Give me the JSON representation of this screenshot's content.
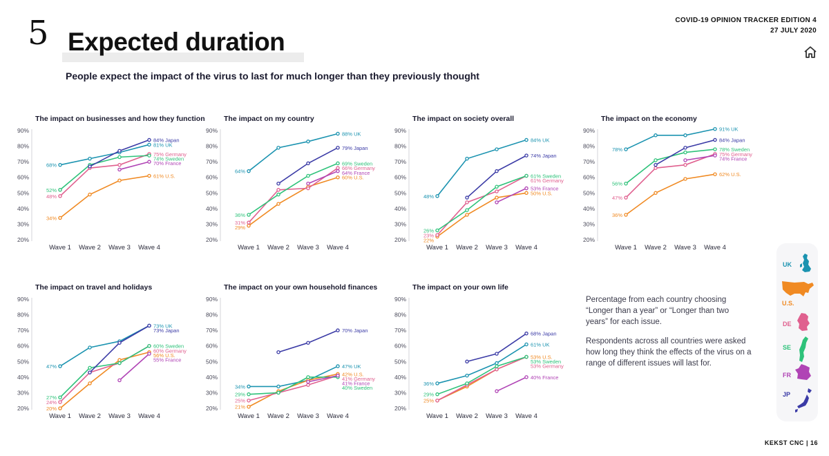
{
  "header": {
    "edition": "COVID-19 OPINION TRACKER EDITION 4",
    "date": "27 JULY 2020",
    "section_number": "5",
    "title": "Expected duration",
    "subtitle": "People expect the impact of the virus to last for much longer than they previously thought",
    "home_icon": "home-icon"
  },
  "colors": {
    "UK": "#1b93b0",
    "US": "#f08a23",
    "Germany": "#e0608f",
    "Sweden": "#2ec27a",
    "France": "#b044b5",
    "Japan": "#3b3ba6"
  },
  "chart_data": [
    {
      "type": "line",
      "title": "The impact on businesses and how they function",
      "categories": [
        "Wave 1",
        "Wave 2",
        "Wave 3",
        "Wave 4"
      ],
      "yticks": [
        "90%",
        "80%",
        "70%",
        "60%",
        "50%",
        "40%",
        "30%",
        "20%"
      ],
      "ylim": [
        20,
        90
      ],
      "first_labels": [
        "68%",
        "52%",
        "48%",
        "34%"
      ],
      "last_labels": [
        "84% Japan",
        "81% UK",
        "75% Germany",
        "74% Sweden",
        "70% France",
        "61% U.S."
      ],
      "series": [
        {
          "name": "UK",
          "values": [
            68,
            72,
            76,
            81
          ]
        },
        {
          "name": "US",
          "values": [
            34,
            49,
            58,
            61
          ]
        },
        {
          "name": "Germany",
          "values": [
            48,
            66,
            68,
            75
          ]
        },
        {
          "name": "Sweden",
          "values": [
            52,
            68,
            73,
            74
          ]
        },
        {
          "name": "France",
          "values": [
            null,
            null,
            65,
            70
          ]
        },
        {
          "name": "Japan",
          "values": [
            null,
            67,
            77,
            84
          ]
        }
      ]
    },
    {
      "type": "line",
      "title": "The impact on my country",
      "categories": [
        "Wave 1",
        "Wave 2",
        "Wave 3",
        "Wave 4"
      ],
      "yticks": [
        "90%",
        "80%",
        "70%",
        "60%",
        "50%",
        "40%",
        "30%",
        "20%"
      ],
      "ylim": [
        20,
        90
      ],
      "first_labels": [
        "64%",
        "36%",
        "31%",
        "29%"
      ],
      "last_labels": [
        "88% UK",
        "79% Japan",
        "69% Sweden",
        "66% Germany",
        "64% France",
        "60% U.S."
      ],
      "series": [
        {
          "name": "UK",
          "values": [
            64,
            79,
            83,
            88
          ]
        },
        {
          "name": "US",
          "values": [
            29,
            43,
            54,
            60
          ]
        },
        {
          "name": "Germany",
          "values": [
            31,
            52,
            53,
            66
          ]
        },
        {
          "name": "Sweden",
          "values": [
            36,
            49,
            61,
            69
          ]
        },
        {
          "name": "France",
          "values": [
            null,
            null,
            56,
            64
          ]
        },
        {
          "name": "Japan",
          "values": [
            null,
            56,
            69,
            79
          ]
        }
      ]
    },
    {
      "type": "line",
      "title": "The impact on society overall",
      "categories": [
        "Wave 1",
        "Wave 2",
        "Wave 3",
        "Wave 4"
      ],
      "yticks": [
        "90%",
        "80%",
        "70%",
        "60%",
        "50%",
        "40%",
        "30%",
        "20%"
      ],
      "ylim": [
        20,
        90
      ],
      "first_labels": [
        "48%",
        "26%",
        "23%",
        "22%"
      ],
      "last_labels": [
        "84% UK",
        "74% Japan",
        "61% Sweden",
        "61% Germany",
        "53% France",
        "50% U.S."
      ],
      "series": [
        {
          "name": "UK",
          "values": [
            48,
            72,
            78,
            84
          ]
        },
        {
          "name": "US",
          "values": [
            22,
            36,
            47,
            50
          ]
        },
        {
          "name": "Germany",
          "values": [
            23,
            44,
            51,
            61
          ]
        },
        {
          "name": "Sweden",
          "values": [
            26,
            39,
            54,
            61
          ]
        },
        {
          "name": "France",
          "values": [
            null,
            null,
            44,
            53
          ]
        },
        {
          "name": "Japan",
          "values": [
            null,
            47,
            64,
            74
          ]
        }
      ]
    },
    {
      "type": "line",
      "title": "The impact on the economy",
      "categories": [
        "Wave 1",
        "Wave 2",
        "Wave 3",
        "Wave 4"
      ],
      "yticks": [
        "90%",
        "80%",
        "70%",
        "60%",
        "50%",
        "40%",
        "30%",
        "20%"
      ],
      "ylim": [
        20,
        90
      ],
      "first_labels": [
        "78%",
        "56%",
        "47%",
        "36%"
      ],
      "last_labels": [
        "91% UK",
        "84% Japan",
        "78% Sweden",
        "75% Germany",
        "74% France",
        "62% U.S."
      ],
      "series": [
        {
          "name": "UK",
          "values": [
            78,
            87,
            87,
            91
          ]
        },
        {
          "name": "US",
          "values": [
            36,
            50,
            59,
            62
          ]
        },
        {
          "name": "Germany",
          "values": [
            47,
            66,
            68,
            75
          ]
        },
        {
          "name": "Sweden",
          "values": [
            56,
            71,
            76,
            78
          ]
        },
        {
          "name": "France",
          "values": [
            null,
            null,
            71,
            74
          ]
        },
        {
          "name": "Japan",
          "values": [
            null,
            68,
            79,
            84
          ]
        }
      ]
    },
    {
      "type": "line",
      "title": "The impact on travel and holidays",
      "categories": [
        "Wave 1",
        "Wave 2",
        "Wave 3",
        "Wave 4"
      ],
      "yticks": [
        "90%",
        "80%",
        "70%",
        "60%",
        "50%",
        "40%",
        "30%",
        "20%"
      ],
      "ylim": [
        20,
        90
      ],
      "first_labels": [
        "47%",
        "27%",
        "24%",
        "20%"
      ],
      "last_labels": [
        "73% UK",
        "73% Japan",
        "60% Sweden",
        "60% Germany",
        "56% U.S.",
        "55% France"
      ],
      "series": [
        {
          "name": "UK",
          "values": [
            47,
            59,
            63,
            73
          ]
        },
        {
          "name": "US",
          "values": [
            20,
            36,
            51,
            56
          ]
        },
        {
          "name": "Germany",
          "values": [
            24,
            43,
            49,
            60
          ]
        },
        {
          "name": "Sweden",
          "values": [
            27,
            46,
            49,
            60
          ]
        },
        {
          "name": "France",
          "values": [
            null,
            null,
            38,
            55
          ]
        },
        {
          "name": "Japan",
          "values": [
            null,
            43,
            62,
            73
          ]
        }
      ]
    },
    {
      "type": "line",
      "title": "The impact on your own household finances",
      "categories": [
        "Wave 1",
        "Wave 2",
        "Wave 3",
        "Wave 4"
      ],
      "yticks": [
        "90%",
        "80%",
        "70%",
        "60%",
        "50%",
        "40%",
        "30%",
        "20%"
      ],
      "ylim": [
        20,
        90
      ],
      "first_labels": [
        "34%",
        "29%",
        "25%",
        "21%"
      ],
      "last_labels": [
        "70% Japan",
        "47% UK",
        "42% U.S.",
        "41% Germany",
        "41% France",
        "40% Sweden"
      ],
      "series": [
        {
          "name": "UK",
          "values": [
            34,
            34,
            38,
            47
          ]
        },
        {
          "name": "US",
          "values": [
            21,
            31,
            38,
            42
          ]
        },
        {
          "name": "Germany",
          "values": [
            25,
            30,
            35,
            41
          ]
        },
        {
          "name": "Sweden",
          "values": [
            29,
            30,
            40,
            40
          ]
        },
        {
          "name": "France",
          "values": [
            null,
            null,
            37,
            41
          ]
        },
        {
          "name": "Japan",
          "values": [
            null,
            56,
            62,
            70
          ]
        }
      ]
    },
    {
      "type": "line",
      "title": "The impact on your own life",
      "categories": [
        "Wave 1",
        "Wave 2",
        "Wave 3",
        "Wave 4"
      ],
      "yticks": [
        "90%",
        "80%",
        "70%",
        "60%",
        "50%",
        "40%",
        "30%",
        "20%"
      ],
      "ylim": [
        20,
        90
      ],
      "first_labels": [
        "36%",
        "29%",
        "25%"
      ],
      "last_labels": [
        "68% Japan",
        "61% UK",
        "53% U.S.",
        "53% Sweden",
        "53% Germany",
        "40% France"
      ],
      "series": [
        {
          "name": "UK",
          "values": [
            36,
            41,
            49,
            61
          ]
        },
        {
          "name": "US",
          "values": [
            25,
            34,
            45,
            53
          ]
        },
        {
          "name": "Germany",
          "values": [
            25,
            35,
            45,
            53
          ]
        },
        {
          "name": "Sweden",
          "values": [
            29,
            36,
            47,
            53
          ]
        },
        {
          "name": "France",
          "values": [
            null,
            null,
            31,
            40
          ]
        },
        {
          "name": "Japan",
          "values": [
            null,
            50,
            55,
            68
          ]
        }
      ]
    }
  ],
  "note": {
    "para1": "Percentage from each country choosing “Longer than a year” or “Longer than two years” for each issue.",
    "para2": "Respondents across all countries were asked how long they think the effects of the virus on a range of different issues will last for."
  },
  "legend": [
    {
      "code": "UK",
      "color": "#1b93b0"
    },
    {
      "code": "U.S.",
      "color": "#f08a23"
    },
    {
      "code": "DE",
      "color": "#e0608f"
    },
    {
      "code": "SE",
      "color": "#2ec27a"
    },
    {
      "code": "FR",
      "color": "#b044b5"
    },
    {
      "code": "JP",
      "color": "#3b3ba6"
    }
  ],
  "footer": {
    "brand": "KEKST CNC",
    "separator": "|",
    "page": "16"
  }
}
